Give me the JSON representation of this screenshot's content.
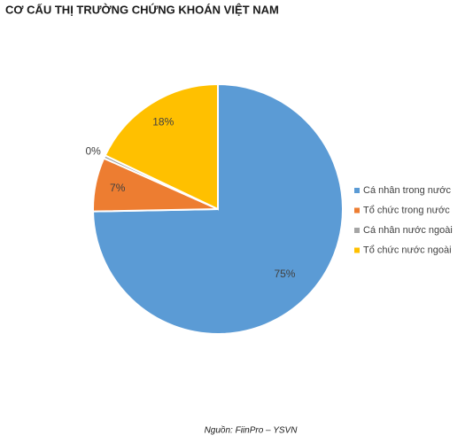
{
  "chart_data": {
    "type": "pie",
    "title": "CƠ CẤU THỊ TRƯỜNG CHỨNG KHOÁN VIỆT NAM",
    "categories": [
      "Cá nhân trong nước",
      "Tổ chức trong nước",
      "Cá nhân nước ngoài",
      "Tổ chức nước ngoài"
    ],
    "values": [
      75,
      7,
      0.4,
      18
    ],
    "value_labels": [
      "75%",
      "7%",
      "0%",
      "18%"
    ],
    "colors": [
      "#5b9bd5",
      "#ed7d31",
      "#a5a5a5",
      "#ffc000"
    ],
    "legend": "right",
    "source": "Nguồn: FiinPro – YSVN"
  }
}
